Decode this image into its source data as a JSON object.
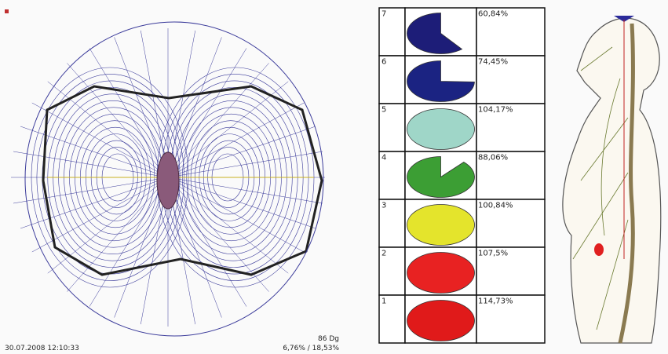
{
  "status": {
    "timestamp": "30.07.2008 12:10:33",
    "angle": "86 Dg",
    "ratio": "6,76% / 18,53%"
  },
  "table": {
    "rows": [
      {
        "label": "7",
        "value": 60.84,
        "value_label": "60,84%",
        "color": "#1d1d78"
      },
      {
        "label": "6",
        "value": 74.45,
        "value_label": "74,45%",
        "color": "#1b2382"
      },
      {
        "label": "5",
        "value": 104.17,
        "value_label": "104,17%",
        "color": "#9fd6c8"
      },
      {
        "label": "4",
        "value": 88.06,
        "value_label": "88,06%",
        "color": "#3c9e34"
      },
      {
        "label": "3",
        "value": 100.84,
        "value_label": "100,84%",
        "color": "#e4e42c"
      },
      {
        "label": "2",
        "value": 107.5,
        "value_label": "107,5%",
        "color": "#e82222"
      },
      {
        "label": "1",
        "value": 114.73,
        "value_label": "114,73%",
        "color": "#e01a1a"
      }
    ]
  }
}
